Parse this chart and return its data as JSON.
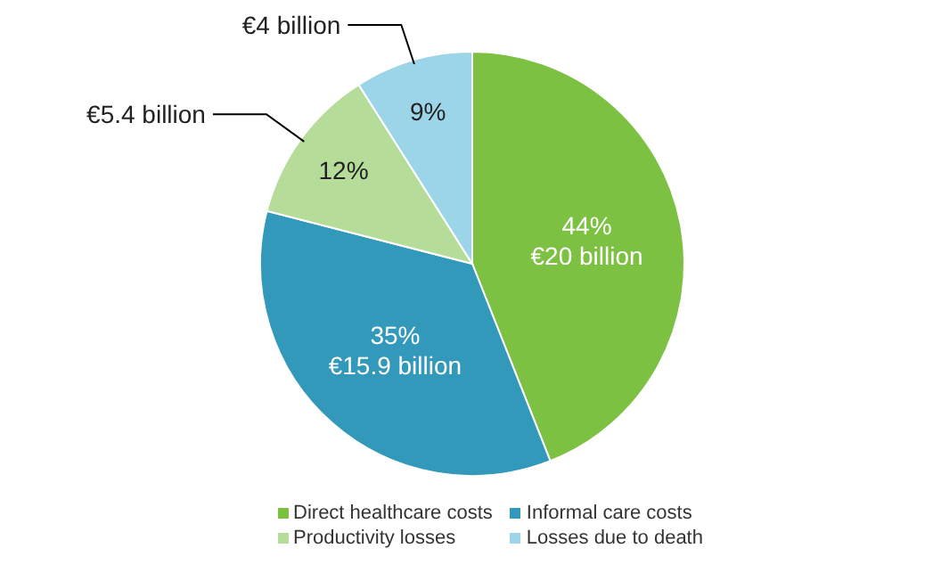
{
  "chart_data": {
    "type": "pie",
    "categories": [
      "Direct healthcare costs",
      "Informal care costs",
      "Productivity losses",
      "Losses due to death"
    ],
    "values": [
      44,
      35,
      12,
      9
    ],
    "colors": [
      "#7dc142",
      "#3399bb",
      "#b5dc98",
      "#9dd5e8"
    ],
    "value_labels": [
      "44%\n€20 billion",
      "35%\n€15.9 billion",
      "12%\n€5.4 billion",
      "9%\n€4 billion"
    ],
    "legend": "bottom"
  }
}
